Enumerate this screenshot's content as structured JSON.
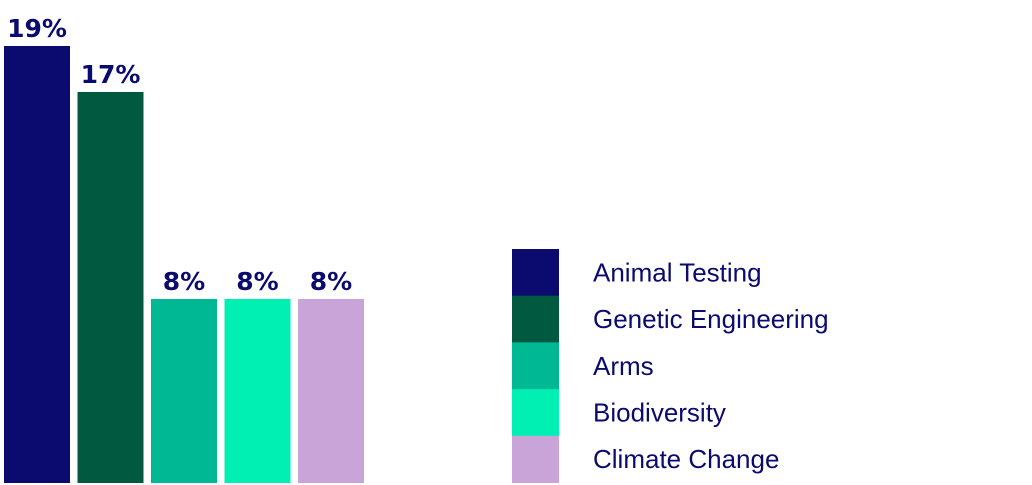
{
  "chart_data": {
    "type": "bar",
    "categories": [
      "Animal Testing",
      "Genetic Engineering",
      "Arms",
      "Biodiversity",
      "Climate Change"
    ],
    "values": [
      19,
      17,
      8,
      8,
      8
    ],
    "data_labels": [
      "19%",
      "17%",
      "8%",
      "8%",
      "8%"
    ],
    "colors": [
      "#0b0a6e",
      "#015a40",
      "#00b894",
      "#00efb3",
      "#c8a4d8"
    ],
    "ylim": [
      0,
      19
    ],
    "grid": false,
    "legend_position": "right",
    "label_color": "#0b0a6e"
  }
}
